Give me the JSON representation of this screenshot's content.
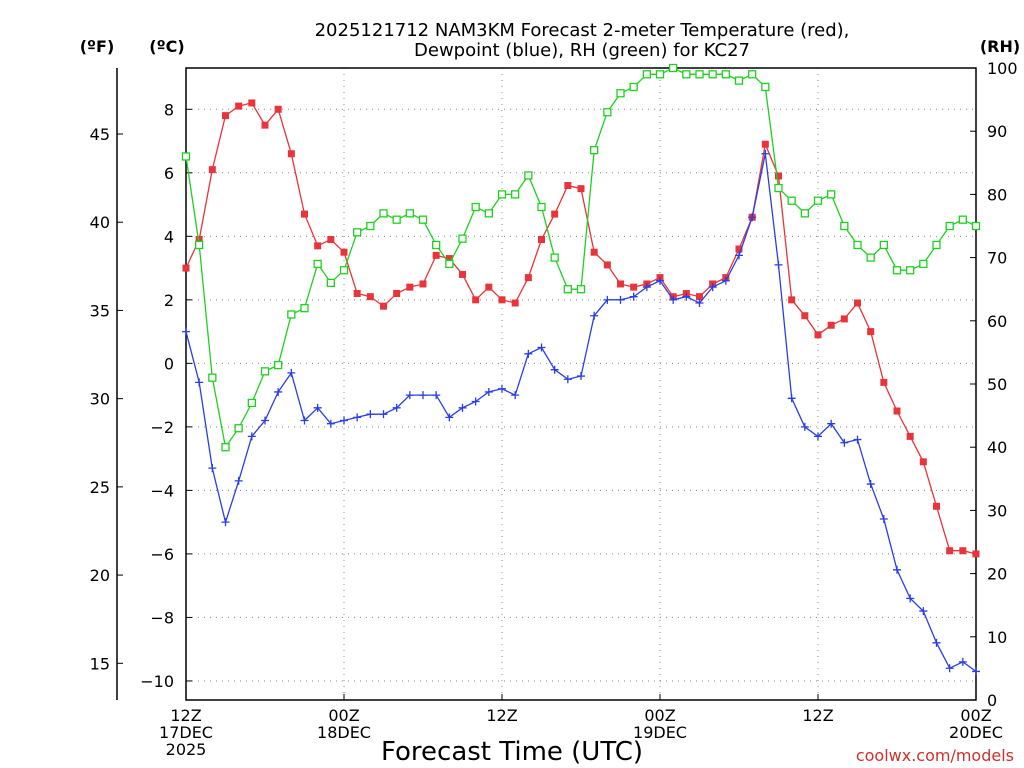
{
  "chart_data": {
    "type": "line",
    "title_line1": "2025121712 NAM3KM Forecast 2-meter Temperature (red),",
    "title_line2": "Dewpoint (blue), RH (green) for KC27",
    "xlabel": "Forecast Time (UTC)",
    "credit": "coolwx.com/models",
    "unit_f": "(ºF)",
    "unit_c": "(ºC)",
    "unit_rh": "(RH)",
    "x_range_hours": [
      0,
      60
    ],
    "c_range": [
      -10.6,
      9.3
    ],
    "rh_range": [
      0,
      100
    ],
    "x_ticks": [
      {
        "hour": 0,
        "lines": [
          "12Z",
          "17DEC",
          "2025"
        ]
      },
      {
        "hour": 12,
        "lines": [
          "00Z",
          "18DEC"
        ]
      },
      {
        "hour": 24,
        "lines": [
          "12Z",
          ""
        ]
      },
      {
        "hour": 36,
        "lines": [
          "00Z",
          "19DEC"
        ]
      },
      {
        "hour": 48,
        "lines": [
          "12Z",
          ""
        ]
      },
      {
        "hour": 60,
        "lines": [
          "00Z",
          "20DEC"
        ]
      }
    ],
    "c_ticks": [
      {
        "v": 8,
        "label": "8"
      },
      {
        "v": 6,
        "label": "6"
      },
      {
        "v": 4,
        "label": "4"
      },
      {
        "v": 2,
        "label": "2"
      },
      {
        "v": 0,
        "label": "0"
      },
      {
        "v": -2,
        "label": "−2"
      },
      {
        "v": -4,
        "label": "−4"
      },
      {
        "v": -6,
        "label": "−6"
      },
      {
        "v": -8,
        "label": "−8"
      },
      {
        "v": -10,
        "label": "−10"
      }
    ],
    "f_ticks": [
      {
        "v": 45,
        "label": "45"
      },
      {
        "v": 40,
        "label": "40"
      },
      {
        "v": 35,
        "label": "35"
      },
      {
        "v": 30,
        "label": "30"
      },
      {
        "v": 25,
        "label": "25"
      },
      {
        "v": 20,
        "label": "20"
      },
      {
        "v": 15,
        "label": "15"
      }
    ],
    "rh_ticks": [
      0,
      10,
      20,
      30,
      40,
      50,
      60,
      70,
      80,
      90,
      100
    ],
    "series": [
      {
        "name": "Temperature",
        "unit": "C",
        "color": "#e8343a",
        "marker": "filled-square",
        "values": [
          3.0,
          3.9,
          6.1,
          7.8,
          8.1,
          8.2,
          7.5,
          8.0,
          6.6,
          4.7,
          3.7,
          3.9,
          3.5,
          2.2,
          2.1,
          1.8,
          2.2,
          2.4,
          2.5,
          3.4,
          3.3,
          2.8,
          2.0,
          2.4,
          2.0,
          1.9,
          2.7,
          3.9,
          4.7,
          5.6,
          5.5,
          3.5,
          3.1,
          2.5,
          2.4,
          2.5,
          2.7,
          2.1,
          2.2,
          2.1,
          2.5,
          2.7,
          3.6,
          4.6,
          6.9,
          5.9,
          2.0,
          1.5,
          0.9,
          1.2,
          1.4,
          1.9,
          1.0,
          -0.6,
          -1.5,
          -2.3,
          -3.1,
          -4.5,
          -5.9,
          -5.9,
          -6.0
        ]
      },
      {
        "name": "Dewpoint",
        "unit": "C",
        "color": "#2a3ee8",
        "marker": "plus",
        "values": [
          1.0,
          -0.6,
          -3.3,
          -5.0,
          -3.7,
          -2.3,
          -1.8,
          -0.9,
          -0.3,
          -1.8,
          -1.4,
          -1.9,
          -1.8,
          -1.7,
          -1.6,
          -1.6,
          -1.4,
          -1.0,
          -1.0,
          -1.0,
          -1.7,
          -1.4,
          -1.2,
          -0.9,
          -0.8,
          -1.0,
          0.3,
          0.5,
          -0.2,
          -0.5,
          -0.4,
          1.5,
          2.0,
          2.0,
          2.1,
          2.4,
          2.6,
          2.0,
          2.1,
          1.9,
          2.4,
          2.6,
          3.4,
          4.6,
          6.6,
          3.1,
          -1.1,
          -2.0,
          -2.3,
          -1.9,
          -2.5,
          -2.4,
          -3.8,
          -4.9,
          -6.5,
          -7.4,
          -7.8,
          -8.8,
          -9.6,
          -9.4,
          -9.7
        ]
      },
      {
        "name": "RH",
        "unit": "%",
        "color": "#1fd11f",
        "marker": "open-square",
        "values": [
          86,
          72,
          51,
          40,
          43,
          47,
          52,
          53,
          61,
          62,
          69,
          66,
          68,
          74,
          75,
          77,
          76,
          77,
          76,
          72,
          69,
          73,
          78,
          77,
          80,
          80,
          83,
          78,
          70,
          65,
          65,
          87,
          93,
          96,
          97,
          99,
          99,
          100,
          99,
          99,
          99,
          99,
          98,
          99,
          97,
          81,
          79,
          77,
          79,
          80,
          75,
          72,
          70,
          72,
          68,
          68,
          69,
          72,
          75,
          76,
          75
        ]
      }
    ]
  }
}
